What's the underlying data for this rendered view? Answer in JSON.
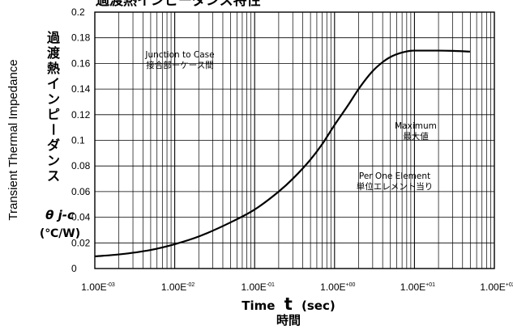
{
  "chart_data": {
    "type": "line",
    "title": "過渡熱インピーダンス特性",
    "x_scale": "log",
    "xlim": [
      0.001,
      100
    ],
    "ylim": [
      0,
      0.2
    ],
    "grid": true,
    "x_ticks": [
      {
        "mant": "1.00E",
        "exp": "-03"
      },
      {
        "mant": "1.00E",
        "exp": "-02"
      },
      {
        "mant": "1.00E",
        "exp": "-01"
      },
      {
        "mant": "1.00E",
        "exp": "+00"
      },
      {
        "mant": "1.00E",
        "exp": "+01"
      },
      {
        "mant": "1.00E",
        "exp": "+02"
      }
    ],
    "y_ticks": [
      "0",
      "0.02",
      "0.04",
      "0.06",
      "0.08",
      "0.1",
      "0.12",
      "0.14",
      "0.16",
      "0.18",
      "0.2"
    ],
    "xlabel": {
      "prefix": "Time",
      "var": "t",
      "unit": "(sec)",
      "jp": "時間"
    },
    "ylabel": {
      "en": "Transient Thermal Impedance",
      "jp": "過渡熱インピーダンス",
      "sym": "θ j-c",
      "unit": "(℃/W)"
    },
    "annotations": [
      {
        "lines": [
          "Junction to Case",
          "接合部ーケース間"
        ]
      },
      {
        "lines": [
          "Maximum",
          "最大値"
        ]
      },
      {
        "lines": [
          "Per One Element",
          "単位エレメント当り"
        ]
      }
    ],
    "series": [
      {
        "x": [
          0.001,
          0.002,
          0.005,
          0.01,
          0.02,
          0.05,
          0.1,
          0.2,
          0.3,
          0.5,
          0.7,
          1.0,
          1.5,
          2.0,
          3.0,
          4.0,
          5.0,
          7.0,
          10.0,
          15.0,
          20.0,
          30.0,
          50.0
        ],
        "y": [
          0.0095,
          0.011,
          0.0145,
          0.019,
          0.025,
          0.036,
          0.046,
          0.06,
          0.07,
          0.085,
          0.097,
          0.112,
          0.128,
          0.14,
          0.154,
          0.161,
          0.165,
          0.1685,
          0.17,
          0.17,
          0.17,
          0.1698,
          0.1692
        ]
      }
    ]
  }
}
